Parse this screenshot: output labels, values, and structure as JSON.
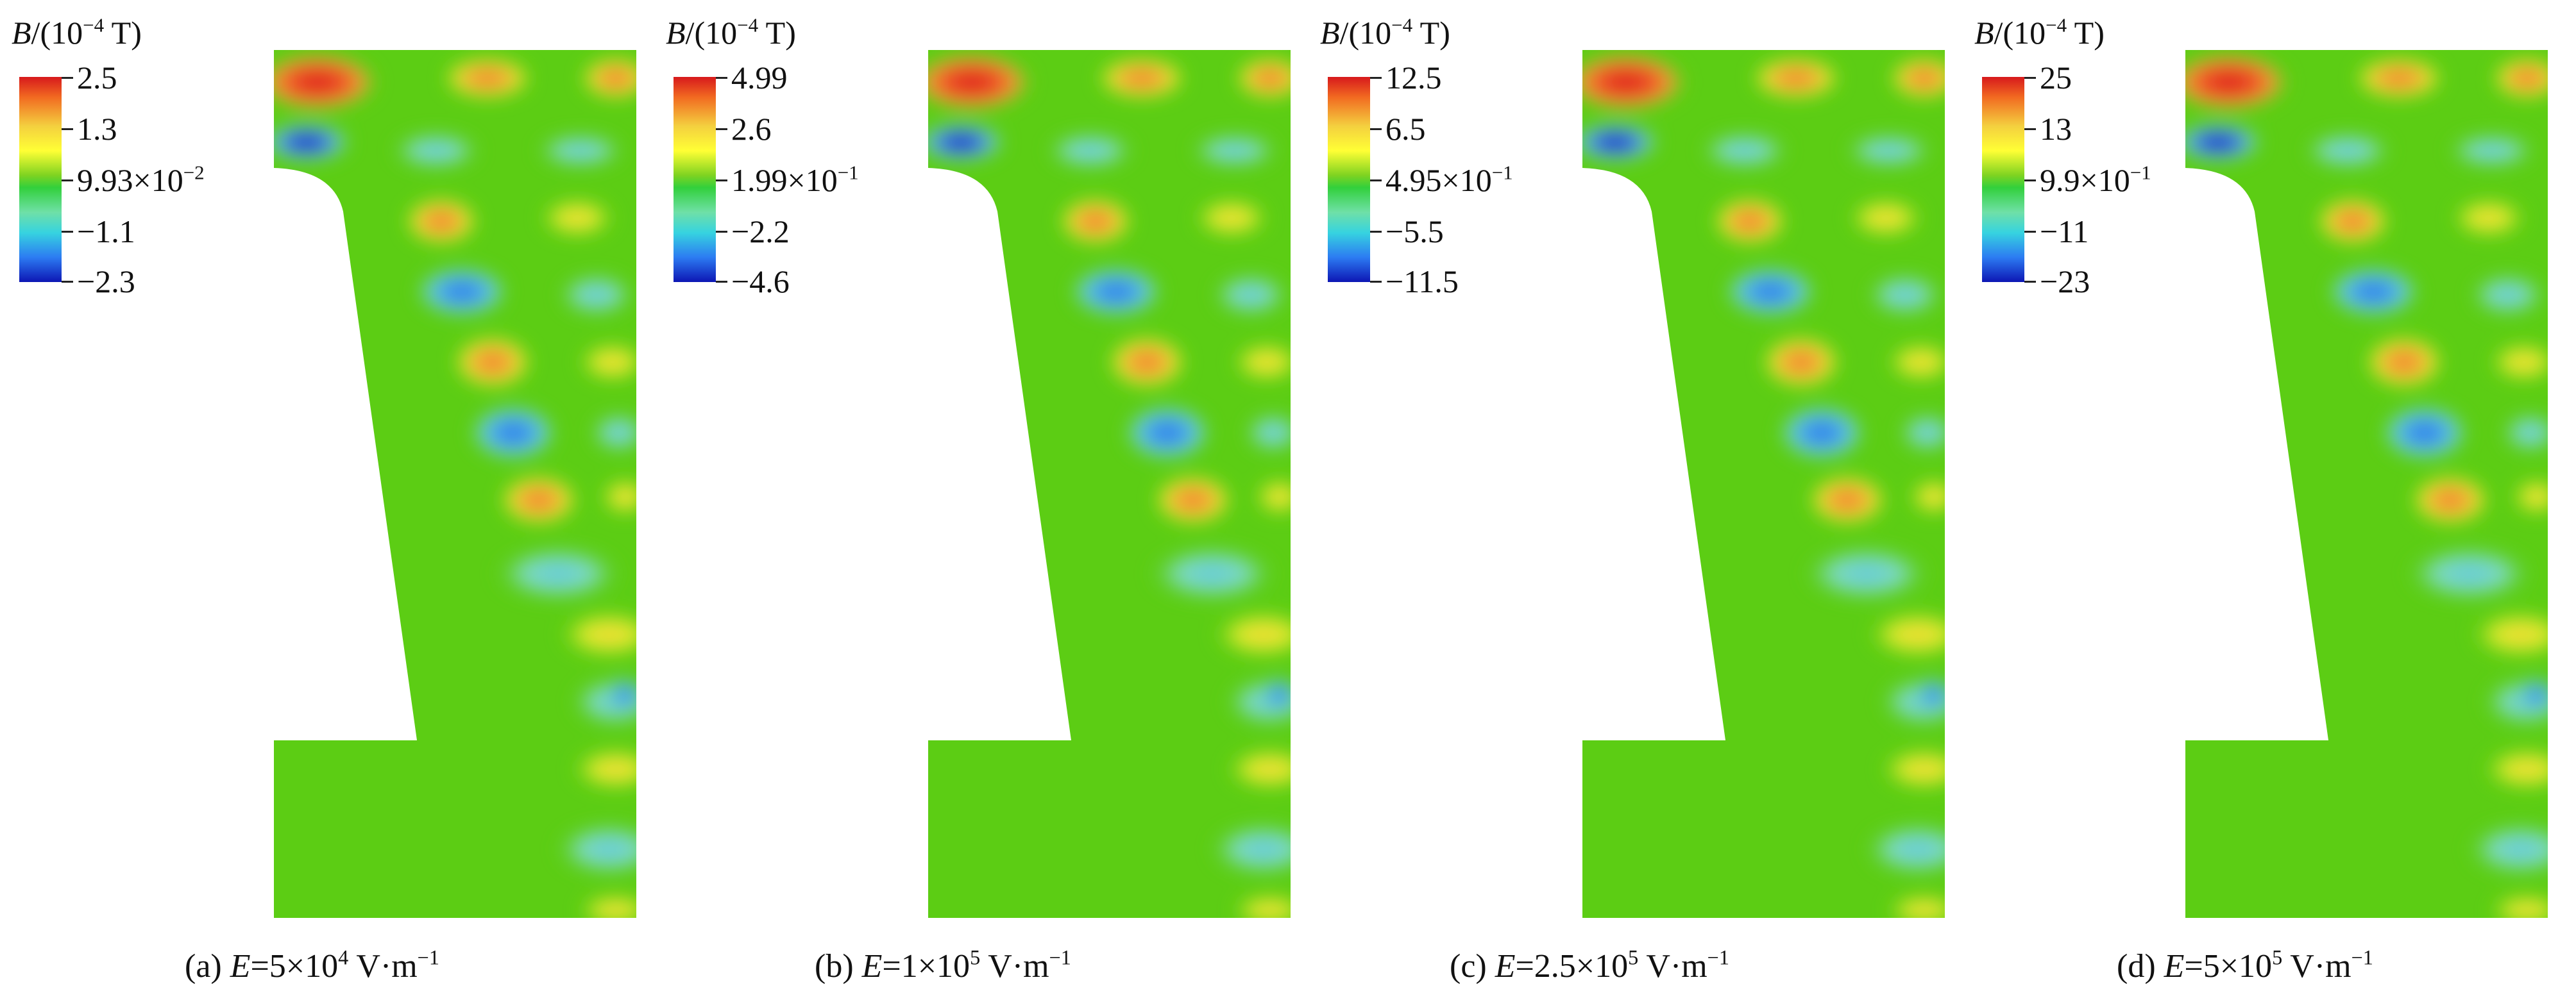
{
  "colorbar_title_symbol": "B",
  "colorbar_title_rest": "/(10",
  "colorbar_title_exp": "−4",
  "colorbar_title_unit": " T)",
  "panels": [
    {
      "ticks": [
        "2.5",
        "1.3",
        "9.93×10",
        "−1.1",
        "−2.3"
      ],
      "mid_exp": "−2",
      "caption_prefix": "(a) ",
      "caption_symbol": "E",
      "caption_value": "=5×10",
      "caption_exp": "4",
      "caption_unit": " V·m",
      "caption_unit_exp": "−1"
    },
    {
      "ticks": [
        "4.99",
        "2.6",
        "1.99×10",
        "−2.2",
        "−4.6"
      ],
      "mid_exp": "−1",
      "caption_prefix": "(b) ",
      "caption_symbol": "E",
      "caption_value": "=1×10",
      "caption_exp": "5",
      "caption_unit": " V·m",
      "caption_unit_exp": "−1"
    },
    {
      "ticks": [
        "12.5",
        "6.5",
        "4.95×10",
        "−5.5",
        "−11.5"
      ],
      "mid_exp": "−1",
      "caption_prefix": "(c) ",
      "caption_symbol": "E",
      "caption_value": "=2.5×10",
      "caption_exp": "5",
      "caption_unit": " V·m",
      "caption_unit_exp": "−1"
    },
    {
      "ticks": [
        "25",
        "13",
        "9.9×10",
        "−11",
        "−23"
      ],
      "mid_exp": "−1",
      "caption_prefix": "(d) ",
      "caption_symbol": "E",
      "caption_value": "=5×10",
      "caption_exp": "5",
      "caption_unit": " V·m",
      "caption_unit_exp": "−1"
    }
  ],
  "colors": {
    "background_field": "#5ccd14",
    "max": "#d7191c",
    "orange": "#f08a2a",
    "yellow": "#e8ef2a",
    "cyan": "#6fd7d0",
    "blue": "#2f7fe6",
    "min": "#0d16b4"
  }
}
